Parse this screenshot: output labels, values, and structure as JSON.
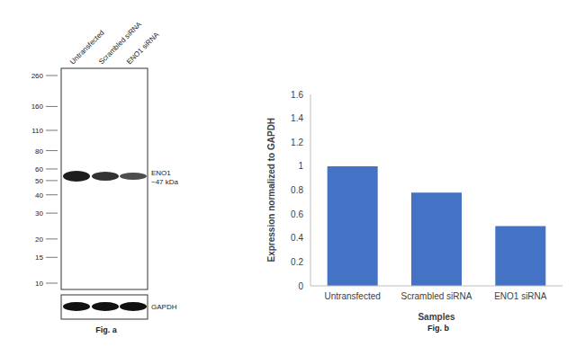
{
  "chart_data": {
    "type": "bar",
    "title": "Fig. b",
    "x_label": "Samples",
    "y_label": "Expression normalized to GAPDH",
    "categories": [
      "Untransfected",
      "Scrambled siRNA",
      "ENO1 siRNA"
    ],
    "values": [
      1,
      0.78,
      0.5
    ],
    "color": "#4472c4",
    "ylim": [
      0,
      1.6
    ],
    "yticks": [
      0,
      0.2,
      0.4,
      0.6,
      0.8,
      1,
      1.2,
      1.4,
      1.6
    ],
    "grid": false
  },
  "blot": {
    "caption": "Fig. a",
    "lanes": [
      "Untransfected",
      "Scrambled siRNA",
      "ENO1 siRNA"
    ],
    "markers_kda": [
      260,
      160,
      110,
      80,
      60,
      50,
      40,
      30,
      20,
      15,
      10
    ],
    "band_label": "ENO1",
    "band_size": "~47 kDa",
    "loading_control": "GAPDH"
  }
}
